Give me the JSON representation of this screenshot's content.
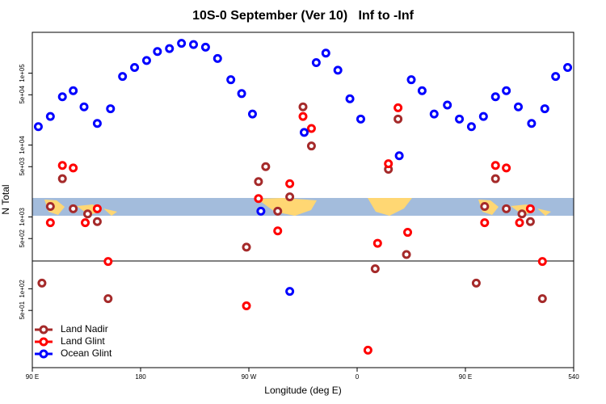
{
  "chart_data": {
    "type": "scatter",
    "title": "10S-0 September (Ver 10)   Inf to -Inf",
    "xlabel": "Longitude (deg E)",
    "ylabel": "N Total",
    "xlim": [
      90,
      540
    ],
    "ylim": [
      8,
      370000
    ],
    "log_y": true,
    "xticks": [
      {
        "value": 90,
        "label": "90 E"
      },
      180,
      {
        "value": 270,
        "label": "90 W"
      },
      {
        "value": 360,
        "label": "0"
      },
      {
        "value": 450,
        "label": "90 E"
      },
      540
    ],
    "yticks": [
      {
        "value": 50,
        "label": "5e+01"
      },
      {
        "value": 100,
        "label": "1e+02"
      },
      {
        "value": 500,
        "label": "5e+02"
      },
      {
        "value": 1000,
        "label": "1e+03"
      },
      {
        "value": 5000,
        "label": "5e+03"
      },
      {
        "value": 10000,
        "label": "1e+04"
      },
      {
        "value": 50000,
        "label": "5e+04"
      },
      {
        "value": 100000,
        "label": "1e+05"
      }
    ],
    "legend": "lower left",
    "series": [
      {
        "name": "Land Nadir",
        "color": "#a52a2a",
        "x": [
          98,
          105,
          115,
          124,
          136,
          144,
          153,
          268,
          278,
          284,
          294,
          304,
          315,
          322,
          375,
          386,
          394,
          401,
          459,
          466,
          475,
          484,
          497,
          504,
          514
        ],
        "values": [
          120,
          1400,
          3400,
          1300,
          1100,
          860,
          73,
          380,
          3100,
          5000,
          1200,
          1900,
          34000,
          9700,
          190,
          4600,
          23000,
          300,
          120,
          1400,
          3400,
          1300,
          1100,
          860,
          73
        ]
      },
      {
        "name": "Land Glint",
        "color": "#ff0000",
        "x": [
          105,
          115,
          124,
          134,
          144,
          153,
          268,
          278,
          294,
          304,
          315,
          322,
          369,
          377,
          386,
          394,
          402,
          466,
          475,
          484,
          495,
          504,
          514
        ],
        "values": [
          830,
          5200,
          4800,
          830,
          1300,
          240,
          58,
          1800,
          640,
          2900,
          25000,
          17000,
          14,
          430,
          5500,
          33000,
          610,
          830,
          5200,
          4800,
          830,
          1300,
          240
        ]
      },
      {
        "name": "Ocean Glint",
        "color": "#0000ff",
        "x": [
          95,
          105,
          115,
          124,
          133,
          144,
          155,
          165,
          175,
          185,
          194,
          204,
          214,
          224,
          234,
          244,
          255,
          264,
          273,
          280,
          304,
          316,
          326,
          334,
          344,
          354,
          363,
          395,
          405,
          414,
          424,
          435,
          445,
          455,
          465,
          475,
          484,
          494,
          505,
          516,
          525,
          535
        ],
        "values": [
          18000,
          25000,
          47000,
          57000,
          34000,
          20000,
          32000,
          90000,
          120000,
          150000,
          200000,
          220000,
          260000,
          250000,
          230000,
          160000,
          81000,
          52000,
          27000,
          1200,
          92,
          15000,
          140000,
          190000,
          110000,
          44000,
          23000,
          7100,
          81000,
          57000,
          27000,
          36000,
          23000,
          18000,
          25000,
          47000,
          57000,
          34000,
          20000,
          32000,
          90000,
          120000
        ]
      }
    ]
  }
}
